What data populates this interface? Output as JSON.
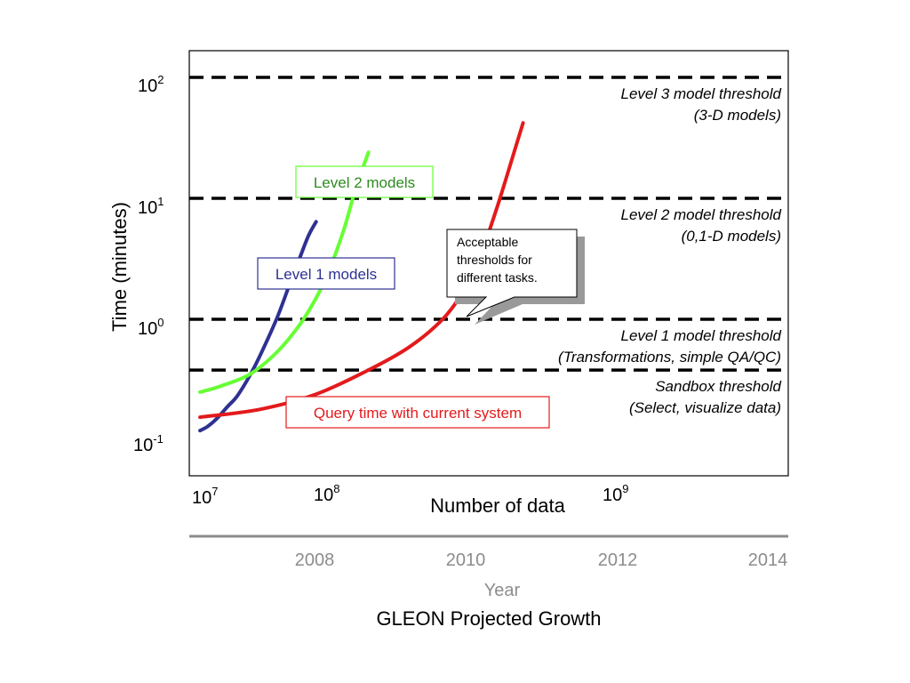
{
  "chart_data": {
    "type": "line",
    "xlabel": "Number of data",
    "ylabel": "Time (minutes)",
    "title": "GLEON Projected Growth",
    "x_scale": "log",
    "y_scale": "log",
    "xlim": [
      10000000,
      5000000000
    ],
    "ylim": [
      0.05,
      140
    ],
    "x_ticks": [
      {
        "value": 10000000,
        "base": "10",
        "exp": "7"
      },
      {
        "value": 100000000,
        "base": "10",
        "exp": "8"
      },
      {
        "value": 1000000000,
        "base": "10",
        "exp": "9"
      }
    ],
    "y_ticks": [
      {
        "value": 100,
        "base": "10",
        "exp": "2"
      },
      {
        "value": 10,
        "base": "10",
        "exp": "1"
      },
      {
        "value": 1,
        "base": "10",
        "exp": "0"
      },
      {
        "value": 0.1,
        "base": "10",
        "exp": "-1"
      }
    ],
    "secondary_axis": {
      "label": "Year",
      "ticks": [
        "2008",
        "2010",
        "2012",
        "2014"
      ]
    },
    "thresholds": [
      {
        "value": 100,
        "line1": "Level 3 model threshold",
        "line2": "(3-D models)"
      },
      {
        "value": 10,
        "line1": "Level 2 model threshold",
        "line2": "(0,1-D models)"
      },
      {
        "value": 1,
        "line1": "Level 1 model threshold",
        "line2": "(Transformations, simple QA/QC)"
      },
      {
        "value": 0.38,
        "line1": "Sandbox threshold",
        "line2": "(Select, visualize data)"
      }
    ],
    "series": [
      {
        "name": "Level 1 models",
        "color": "#2e3192",
        "x": [
          10500000,
          12000000,
          14000000,
          17000000,
          20000000,
          25000000,
          30000000,
          40000000,
          50000000,
          60000000,
          70000000,
          80000000
        ],
        "y": [
          0.12,
          0.13,
          0.15,
          0.19,
          0.23,
          0.34,
          0.5,
          1.0,
          1.9,
          3.2,
          4.9,
          6.4
        ]
      },
      {
        "name": "Level 2 models",
        "color": "#66ff33",
        "x": [
          10500000,
          15000000,
          25000000,
          40000000,
          60000000,
          80000000,
          100000000,
          130000000,
          160000000,
          200000000
        ],
        "y": [
          0.25,
          0.28,
          0.35,
          0.53,
          0.9,
          1.5,
          2.5,
          5.5,
          12,
          24
        ]
      },
      {
        "name": "Query time with current system",
        "color": "#e31a1c",
        "x": [
          10500000,
          30000000,
          80000000,
          200000000,
          400000000,
          700000000,
          1000000000,
          1300000000,
          1600000000,
          2000000000,
          2500000000,
          3000000000
        ],
        "y": [
          0.155,
          0.18,
          0.24,
          0.38,
          0.58,
          0.95,
          1.55,
          2.6,
          4.8,
          10,
          22,
          42
        ]
      }
    ],
    "callout": {
      "lines": [
        "Acceptable",
        "thresholds for",
        "different tasks."
      ]
    },
    "colors": {
      "level1": "#2e3192",
      "level2": "#66ff33",
      "level2_label": "#2e8b1f",
      "query": "#e31a1c",
      "year_axis": "#8c8c8c"
    }
  }
}
